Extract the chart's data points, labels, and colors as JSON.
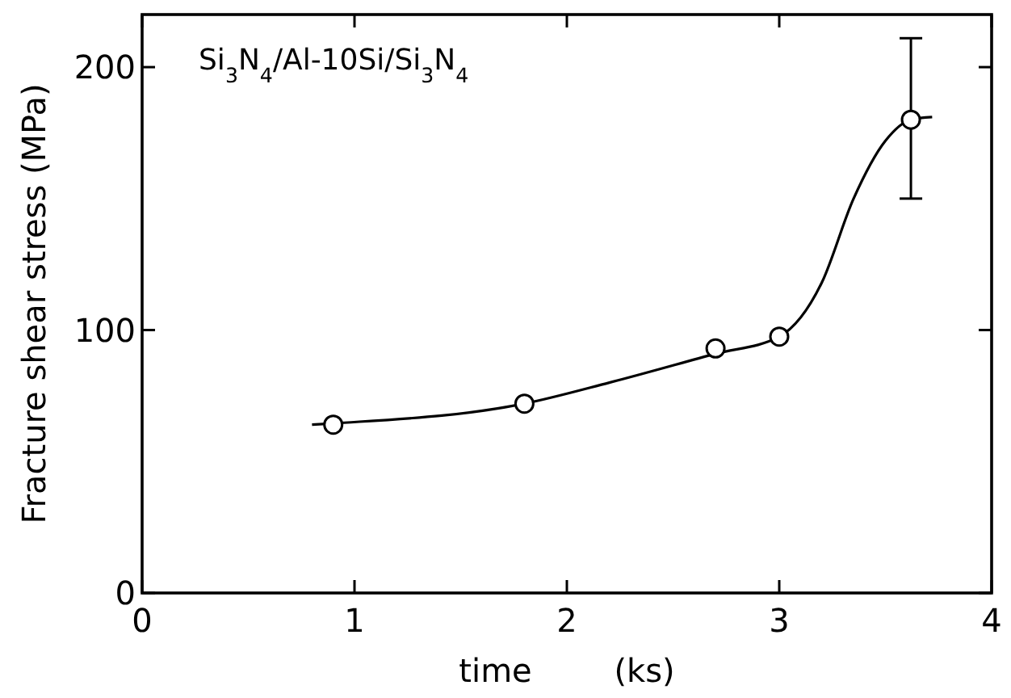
{
  "chart_data": {
    "type": "scatter",
    "xlabel": "time        (ks)",
    "ylabel": "Fracture shear stress (MPa)",
    "annotations": [
      "Si$_{3}$N$_{4}$/Al-10Si/Si$_{3}$N$_{4}$"
    ],
    "xlim": [
      0,
      4
    ],
    "xticks": [
      0,
      1,
      2,
      3,
      4
    ],
    "ylim": [
      0,
      220
    ],
    "yticks": [
      0,
      100,
      200
    ],
    "grid": false,
    "marker": "circle",
    "series": [
      {
        "color": "#000000",
        "x": [
          0.9,
          1.8,
          2.7,
          3.0,
          3.62
        ],
        "values": [
          64,
          72,
          93,
          97.5,
          180
        ],
        "errors": [
          null,
          null,
          null,
          null,
          [
            150,
            211
          ]
        ]
      },
      {
        "type": "line",
        "color": "#000000",
        "marker": "none",
        "line_style": "solid",
        "x": [
          0.8,
          0.9,
          1.8,
          2.2,
          2.7,
          3.0,
          3.2,
          3.35,
          3.5,
          3.62,
          3.72
        ],
        "values": [
          64,
          64.5,
          72,
          80,
          91,
          97.5,
          118,
          150,
          172,
          180,
          181
        ]
      }
    ]
  }
}
